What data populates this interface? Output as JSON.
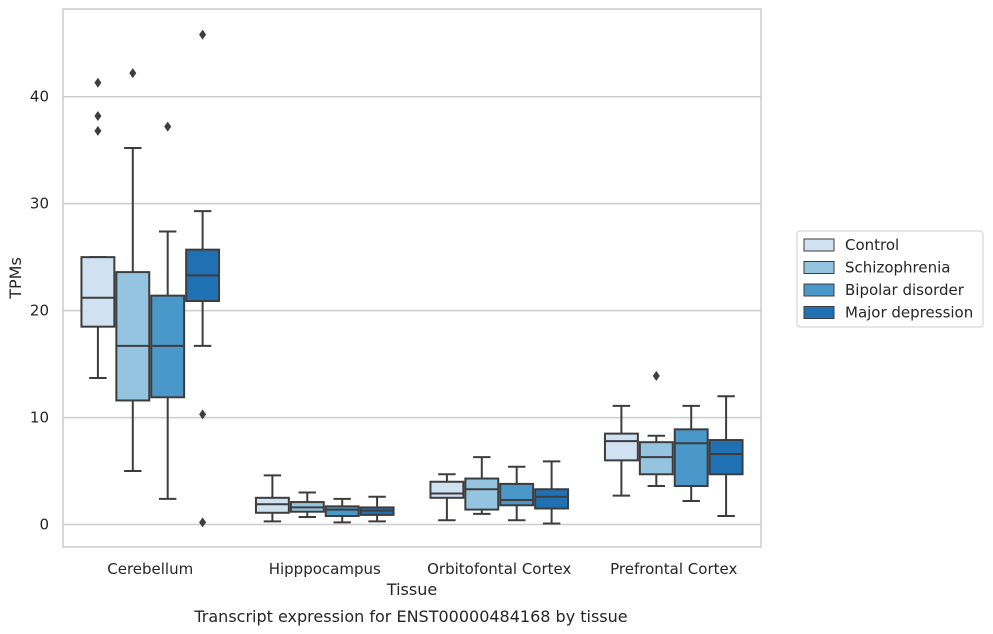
{
  "chart_data": {
    "type": "box",
    "title": "",
    "caption": "Transcript expression for ENST00000484168 by tissue",
    "xlabel": "Tissue",
    "ylabel": "TPMs",
    "ylim": [
      -2.1,
      48.2
    ],
    "yticks": [
      0,
      10,
      20,
      30,
      40
    ],
    "grid": "horizontal",
    "legend_position": "right",
    "categories": [
      "Cerebellum",
      "Hipppocampus",
      "Orbitofontal Cortex",
      "Prefrontal Cortex"
    ],
    "series": [
      {
        "name": "Control",
        "color": "#d0e1f2",
        "boxes": [
          {
            "whislo": 13.7,
            "q1": 18.5,
            "med": 21.2,
            "q3": 25.0,
            "whishi": 25.0,
            "fliers": [
              36.8,
              38.2,
              41.3
            ]
          },
          {
            "whislo": 0.3,
            "q1": 1.1,
            "med": 1.9,
            "q3": 2.5,
            "whishi": 4.6,
            "fliers": []
          },
          {
            "whislo": 0.4,
            "q1": 2.5,
            "med": 2.9,
            "q3": 4.0,
            "whishi": 4.7,
            "fliers": []
          },
          {
            "whislo": 2.7,
            "q1": 6.0,
            "med": 7.8,
            "q3": 8.5,
            "whishi": 11.1,
            "fliers": []
          }
        ]
      },
      {
        "name": "Schizophrenia",
        "color": "#94c4df",
        "boxes": [
          {
            "whislo": 5.0,
            "q1": 11.6,
            "med": 16.7,
            "q3": 23.6,
            "whishi": 35.2,
            "fliers": [
              42.2
            ]
          },
          {
            "whislo": 0.7,
            "q1": 1.2,
            "med": 1.6,
            "q3": 2.1,
            "whishi": 3.0,
            "fliers": []
          },
          {
            "whislo": 1.0,
            "q1": 1.4,
            "med": 3.3,
            "q3": 4.3,
            "whishi": 6.3,
            "fliers": []
          },
          {
            "whislo": 3.6,
            "q1": 4.7,
            "med": 6.3,
            "q3": 7.7,
            "whishi": 8.3,
            "fliers": [
              13.9
            ]
          }
        ]
      },
      {
        "name": "Bipolar disorder",
        "color": "#4a98c9",
        "boxes": [
          {
            "whislo": 2.4,
            "q1": 11.9,
            "med": 16.7,
            "q3": 21.4,
            "whishi": 27.4,
            "fliers": [
              37.2
            ]
          },
          {
            "whislo": 0.2,
            "q1": 0.8,
            "med": 1.4,
            "q3": 1.7,
            "whishi": 2.4,
            "fliers": []
          },
          {
            "whislo": 0.4,
            "q1": 1.8,
            "med": 2.3,
            "q3": 3.8,
            "whishi": 5.4,
            "fliers": []
          },
          {
            "whislo": 2.2,
            "q1": 3.6,
            "med": 7.6,
            "q3": 8.9,
            "whishi": 11.1,
            "fliers": []
          }
        ]
      },
      {
        "name": "Major depression",
        "color": "#2070b4",
        "boxes": [
          {
            "whislo": 16.7,
            "q1": 20.9,
            "med": 23.3,
            "q3": 25.7,
            "whishi": 29.3,
            "fliers": [
              10.3,
              0.2,
              45.8
            ]
          },
          {
            "whislo": 0.3,
            "q1": 0.9,
            "med": 1.3,
            "q3": 1.6,
            "whishi": 2.6,
            "fliers": []
          },
          {
            "whislo": 0.1,
            "q1": 1.5,
            "med": 2.6,
            "q3": 3.3,
            "whishi": 5.9,
            "fliers": []
          },
          {
            "whislo": 0.8,
            "q1": 4.7,
            "med": 6.6,
            "q3": 7.9,
            "whishi": 12.0,
            "fliers": []
          }
        ]
      }
    ]
  }
}
